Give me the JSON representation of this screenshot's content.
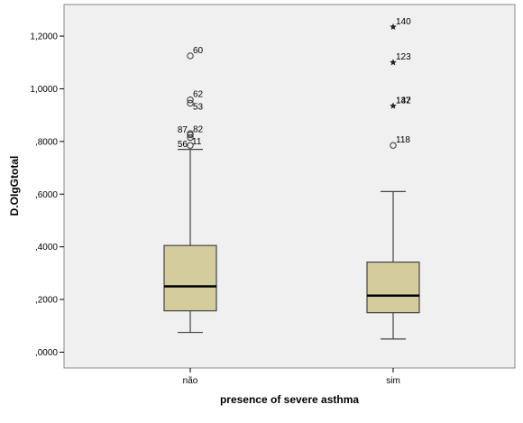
{
  "chart_data": {
    "type": "boxplot",
    "title": "",
    "xlabel": "presence of severe asthma",
    "ylabel": "D.OIgGtotal",
    "ylim": [
      -0.06,
      1.32
    ],
    "y_ticks": [
      {
        "value": 0.0,
        "label": ",0000"
      },
      {
        "value": 0.2,
        "label": ",2000"
      },
      {
        "value": 0.4,
        "label": ",4000"
      },
      {
        "value": 0.6,
        "label": ",6000"
      },
      {
        "value": 0.8,
        "label": ",8000"
      },
      {
        "value": 1.0,
        "label": "1,0000"
      },
      {
        "value": 1.2,
        "label": "1,2000"
      }
    ],
    "grid": false,
    "legend": "none",
    "colors": {
      "plot_background": "#f0f0f0",
      "box_fill": "#d4cc9c",
      "box_edge": "#444444",
      "median": "#000000"
    },
    "categories": [
      "não",
      "sim"
    ],
    "boxes": [
      {
        "category": "não",
        "whisker_low": 0.075,
        "q1": 0.157,
        "median": 0.25,
        "q3": 0.405,
        "whisker_high": 0.77,
        "outliers": [
          {
            "value": 1.125,
            "label": "60",
            "marker": "circle"
          },
          {
            "value": 0.958,
            "label": "62",
            "marker": "circle"
          },
          {
            "value": 0.945,
            "label": "",
            "marker": "circle"
          },
          {
            "value": 0.91,
            "label": "53",
            "marker": "none"
          },
          {
            "value": 0.83,
            "label": "87",
            "marker": "circle"
          },
          {
            "value": 0.825,
            "label": "82",
            "marker": "circle"
          },
          {
            "value": 0.815,
            "label": "",
            "marker": "circle"
          },
          {
            "value": 0.785,
            "label": "56",
            "marker": "circle"
          },
          {
            "value": 0.8,
            "label": "11",
            "marker": "none"
          }
        ]
      },
      {
        "category": "sim",
        "whisker_low": 0.05,
        "q1": 0.15,
        "median": 0.215,
        "q3": 0.342,
        "whisker_high": 0.61,
        "outliers": [
          {
            "value": 1.235,
            "label": "140",
            "marker": "star"
          },
          {
            "value": 1.1,
            "label": "123",
            "marker": "star"
          },
          {
            "value": 0.935,
            "label": "132",
            "marker": "star"
          },
          {
            "value": 0.935,
            "label": "147",
            "marker": "none"
          },
          {
            "value": 0.785,
            "label": "118",
            "marker": "circle"
          }
        ]
      }
    ]
  }
}
